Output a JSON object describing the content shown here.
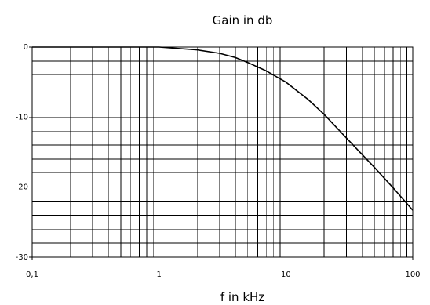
{
  "chart_data": {
    "type": "line",
    "title": "Gain in db",
    "xlabel": "f in kHz",
    "ylabel": "",
    "x_scale": "log",
    "xlim": [
      0.1,
      100
    ],
    "ylim": [
      -30,
      0
    ],
    "grid": true,
    "x_ticks": [
      {
        "value": 0.1,
        "label": "0,1"
      },
      {
        "value": 1,
        "label": "1"
      },
      {
        "value": 10,
        "label": "10"
      },
      {
        "value": 100,
        "label": "100"
      }
    ],
    "y_ticks": [
      {
        "value": 0,
        "label": "0"
      },
      {
        "value": -10,
        "label": "-10"
      },
      {
        "value": -20,
        "label": "-20"
      },
      {
        "value": -30,
        "label": "-30"
      }
    ],
    "y_minor_step": 2,
    "series": [
      {
        "x": [
          0.1,
          0.5,
          1,
          2,
          3,
          4,
          5,
          7,
          10,
          15,
          20,
          30,
          50,
          70,
          100
        ],
        "y": [
          0,
          0,
          0,
          -0.4,
          -0.9,
          -1.5,
          -2.2,
          -3.4,
          -5.0,
          -7.5,
          -9.6,
          -13.0,
          -17.2,
          -20.1,
          -23.3
        ]
      }
    ]
  }
}
